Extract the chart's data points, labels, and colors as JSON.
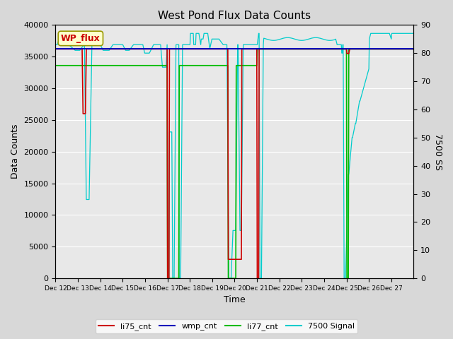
{
  "title": "West Pond Flux Data Counts",
  "xlabel": "Time",
  "ylabel_left": "Data Counts",
  "ylabel_right": "7500 SS",
  "ylim_left": [
    0,
    40000
  ],
  "ylim_right": [
    0,
    90
  ],
  "x_tick_labels": [
    "Dec 12",
    "Dec 13",
    "Dec 14",
    "Dec 15",
    "Dec 16",
    "Dec 17",
    "Dec 18",
    "Dec 19",
    "Dec 20",
    "Dec 21",
    "Dec 22",
    "Dec 23",
    "Dec 24",
    "Dec 25",
    "Dec 26",
    "Dec 27"
  ],
  "legend_entries": [
    "li75_cnt",
    "wmp_cnt",
    "li77_cnt",
    "7500 Signal"
  ],
  "wp_flux_label": "WP_flux",
  "fig_bg": "#d8d8d8",
  "plot_bg": "#e8e8e8",
  "grid_color": "#ffffff",
  "color_li75": "#cc0000",
  "color_wmp": "#0000bb",
  "color_li77": "#00bb00",
  "color_7500": "#00cccc",
  "wmp_level": 36200,
  "li77_low": 33600,
  "li77_high": 36200,
  "li75_high": 36200,
  "sig_high": 83.0
}
